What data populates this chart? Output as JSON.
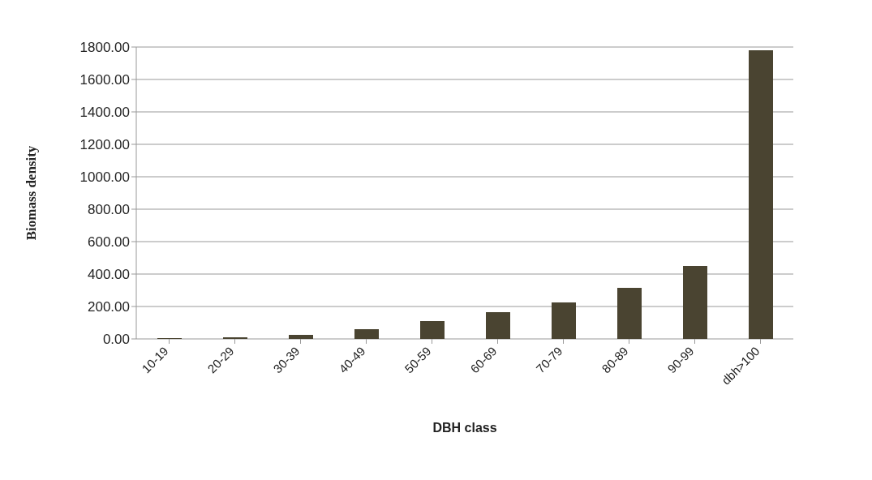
{
  "chart_data": {
    "type": "bar",
    "xlabel": "DBH class",
    "ylabel": "Biomass density",
    "categories": [
      "10-19",
      "20-29",
      "30-39",
      "40-49",
      "50-59",
      "60-69",
      "70-79",
      "80-89",
      "90-99",
      "dbh>100"
    ],
    "values": [
      5,
      10,
      25,
      60,
      110,
      165,
      225,
      315,
      450,
      1780
    ],
    "color": "#4a4431",
    "ylim": [
      0,
      1800
    ],
    "yticks": [
      {
        "value": 0,
        "label": "0.00"
      },
      {
        "value": 200,
        "label": "200.00"
      },
      {
        "value": 400,
        "label": "400.00"
      },
      {
        "value": 600,
        "label": "600.00"
      },
      {
        "value": 800,
        "label": "800.00"
      },
      {
        "value": 1000,
        "label": "1000.00"
      },
      {
        "value": 1200,
        "label": "1200.00"
      },
      {
        "value": 1400,
        "label": "1400.00"
      },
      {
        "value": 1600,
        "label": "1600.00"
      },
      {
        "value": 1800,
        "label": "1800.00"
      }
    ],
    "grid": "y"
  }
}
